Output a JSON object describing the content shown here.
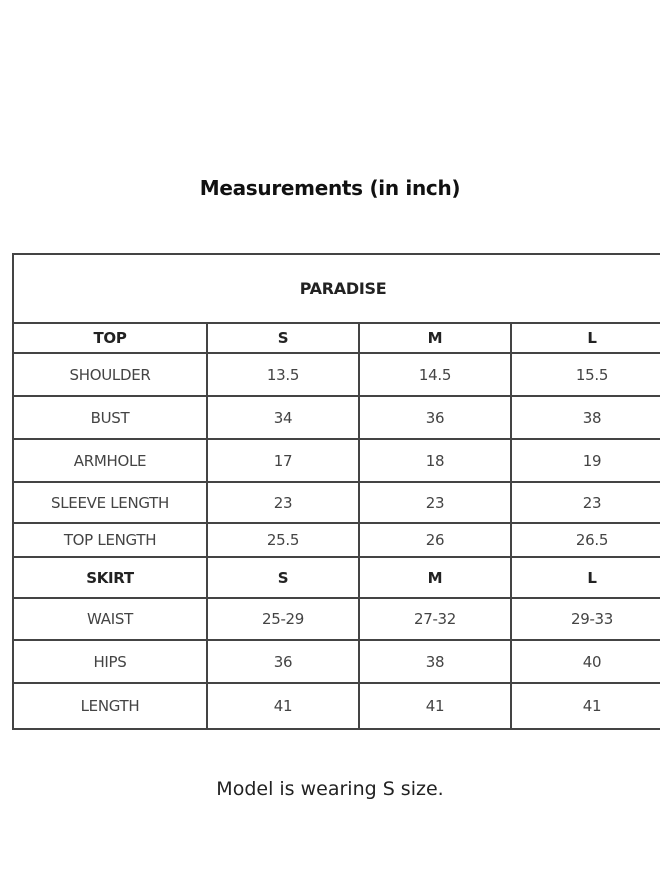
{
  "title": "Measurements (in inch)",
  "table": {
    "name": "PARADISE",
    "rows": [
      {
        "cells": [
          "TOP",
          "S",
          "M",
          "L"
        ],
        "header": true
      },
      {
        "cells": [
          "SHOULDER",
          "13.5",
          "14.5",
          "15.5"
        ]
      },
      {
        "cells": [
          "BUST",
          "34",
          "36",
          "38"
        ]
      },
      {
        "cells": [
          "ARMHOLE",
          "17",
          "18",
          "19"
        ]
      },
      {
        "cells": [
          "SLEEVE LENGTH",
          "23",
          "23",
          "23"
        ]
      },
      {
        "cells": [
          "TOP LENGTH",
          "25.5",
          "26",
          "26.5"
        ]
      },
      {
        "cells": [
          "SKIRT",
          "S",
          "M",
          "L"
        ],
        "header": true
      },
      {
        "cells": [
          "WAIST",
          "25-29",
          "27-32",
          "29-33"
        ]
      },
      {
        "cells": [
          "HIPS",
          "36",
          "38",
          "40"
        ]
      },
      {
        "cells": [
          "LENGTH",
          "41",
          "41",
          "41"
        ]
      }
    ]
  },
  "caption": "Model is wearing S size."
}
